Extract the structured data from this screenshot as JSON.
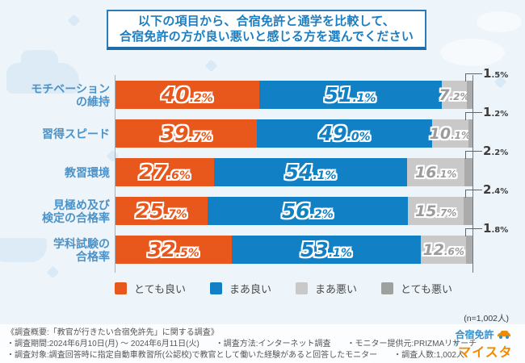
{
  "title": {
    "line1": "以下の項目から、合宿免許と通学を比較して、",
    "line2": "合宿免許の方が良い悪いと感じる方を選んでください"
  },
  "chart_data": {
    "type": "bar",
    "orientation": "horizontal",
    "stacked": true,
    "unit": "%",
    "xlim": [
      0,
      100
    ],
    "grid": false,
    "legend_position": "bottom",
    "categories": [
      "モチベーションの維持",
      "習得スピード",
      "教習環境",
      "見極め及び検定の合格率",
      "学科試験の合格率"
    ],
    "category_label_lines": [
      [
        "モチベーション",
        "の維持"
      ],
      [
        "習得スピード"
      ],
      [
        "教習環境"
      ],
      [
        "見極め及び",
        "検定の合格率"
      ],
      [
        "学科試験の",
        "合格率"
      ]
    ],
    "series": [
      {
        "name": "とても良い",
        "color": "#E8581C",
        "values": [
          40.2,
          39.7,
          27.6,
          25.7,
          32.5
        ]
      },
      {
        "name": "まあ良い",
        "color": "#1280C4",
        "values": [
          51.1,
          49.0,
          54.1,
          56.2,
          53.1
        ]
      },
      {
        "name": "まあ悪い",
        "color": "#C9C9C9",
        "label_color": "#9B9B9B",
        "values": [
          7.2,
          10.1,
          16.1,
          15.7,
          12.6
        ]
      },
      {
        "name": "とても悪い",
        "color": "#ABABAB",
        "values": [
          1.5,
          1.2,
          2.2,
          2.4,
          1.8
        ]
      }
    ]
  },
  "legend": [
    {
      "label": "とても良い",
      "color": "#E8581C"
    },
    {
      "label": "まあ良い",
      "color": "#1280C4"
    },
    {
      "label": "まあ悪い",
      "color": "#C9C9C9"
    },
    {
      "label": "とても悪い",
      "color": "#9FA0A0"
    }
  ],
  "sample_note": "(n=1,002人)",
  "footer": {
    "line1": "《調査概要:「教官が行きたい合宿免許先」に関する調査》",
    "line2": "・調査期間:2024年6月10日(月) ～ 2024年6月11日(火)　　・調査方法:インターネット調査　　・モニター提供元:PRIZMAリサーチ",
    "line3": "・調査対象:調査回答時に指定自動車教習所(公認校)で教官として働いた経験があると回答したモニター　　・調査人数:1,002人"
  },
  "logo": {
    "line1": "合宿免許",
    "car_icon": "car-icon",
    "line2": "マイスター"
  },
  "colors": {
    "background": "#EDF4FA",
    "title_border": "#2B7CBA",
    "title_text": "#1B7EC2",
    "category_label": "#4B92C8"
  }
}
